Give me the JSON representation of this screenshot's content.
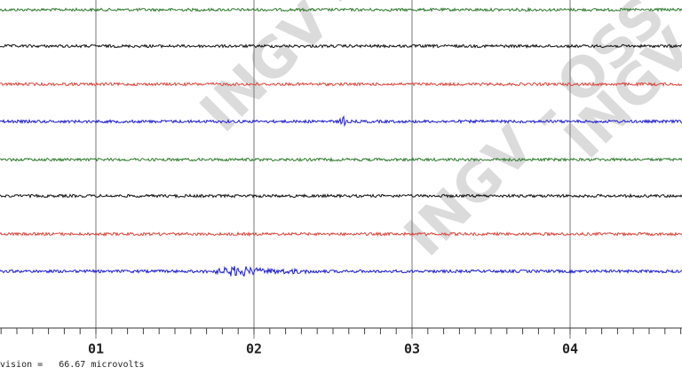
{
  "axis": {
    "labels": [
      "01",
      "02",
      "03",
      "04"
    ]
  },
  "scale_note": "vision =   66.67 microvolts",
  "watermark": "INGV - OSS",
  "traces": [
    {
      "color": "#2f7a2f"
    },
    {
      "color": "#111111"
    },
    {
      "color": "#d8453c"
    },
    {
      "color": "#1c1ccc"
    },
    {
      "color": "#2f7a2f"
    },
    {
      "color": "#111111"
    },
    {
      "color": "#d8453c"
    },
    {
      "color": "#1c1ccc"
    }
  ]
}
